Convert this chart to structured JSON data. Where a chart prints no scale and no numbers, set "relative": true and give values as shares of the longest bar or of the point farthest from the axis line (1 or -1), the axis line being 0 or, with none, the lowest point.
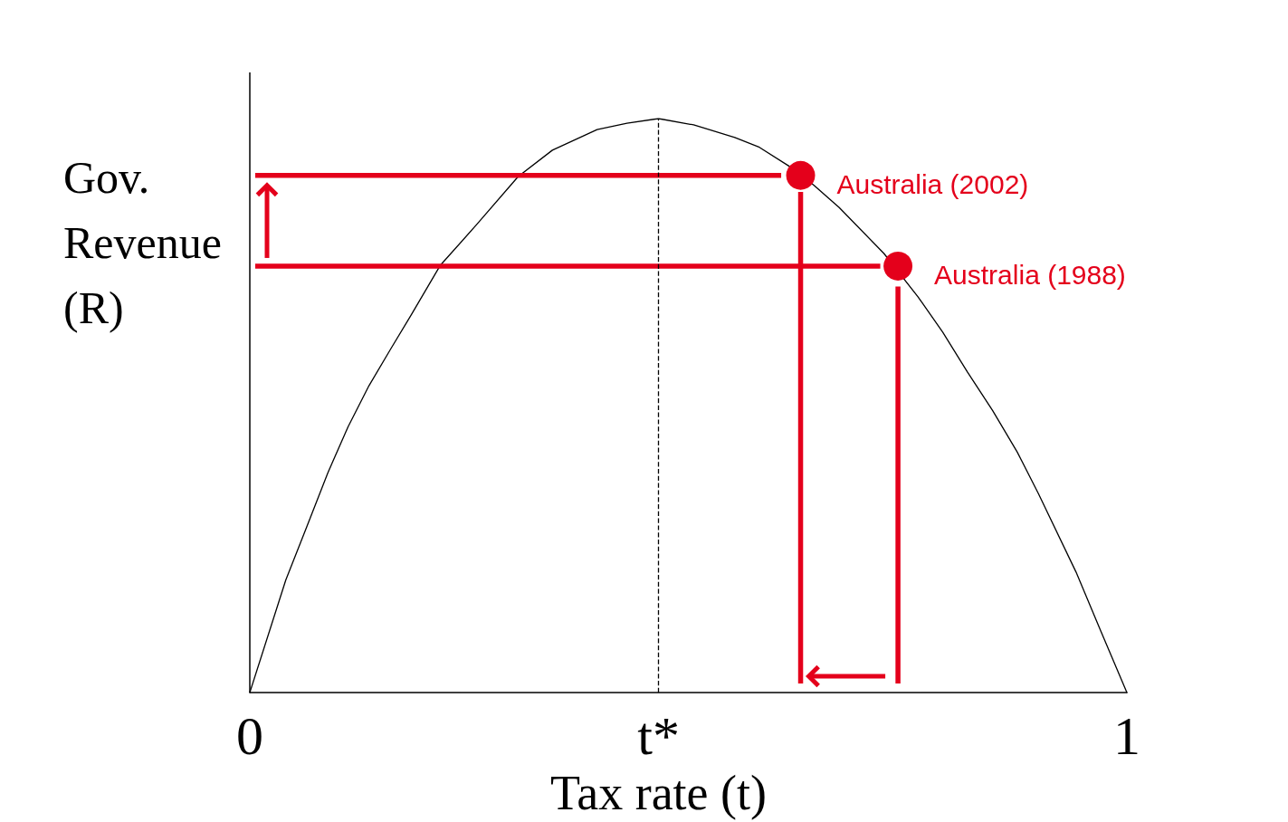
{
  "chart_data": {
    "type": "line",
    "relative": true,
    "xlabel": "Tax rate (t)",
    "ylabel": "Gov. Revenue (R)",
    "xlim": [
      0,
      1
    ],
    "xticks": [
      0,
      {
        "value": 0.466,
        "label": "t*"
      },
      1
    ],
    "grid": false,
    "series": [
      {
        "color": "#000000",
        "marker": "none",
        "x": [
          0,
          0.041,
          0.065,
          0.089,
          0.112,
          0.136,
          0.16,
          0.184,
          0.217,
          0.259,
          0.306,
          0.345,
          0.396,
          0.43,
          0.466,
          0.506,
          0.553,
          0.581,
          0.615,
          0.643,
          0.672,
          0.723,
          0.762,
          0.79,
          0.818,
          0.847,
          0.875,
          0.899,
          0.942,
          0.97,
          1.0
        ],
        "values": [
          0,
          0.196,
          0.289,
          0.383,
          0.463,
          0.535,
          0.597,
          0.658,
          0.744,
          0.816,
          0.899,
          0.945,
          0.981,
          0.992,
          1.0,
          0.989,
          0.967,
          0.95,
          0.917,
          0.884,
          0.845,
          0.765,
          0.689,
          0.628,
          0.559,
          0.491,
          0.419,
          0.347,
          0.21,
          0.108,
          0
        ]
      },
      {
        "color": "#e4001b",
        "marker": "none",
        "x": [
          0.009,
          0.603
        ],
        "values": [
          0.901,
          0.901
        ]
      },
      {
        "color": "#e4001b",
        "marker": "none",
        "x": [
          0.628,
          0.628
        ],
        "values": [
          0.868,
          0.02
        ]
      },
      {
        "color": "#e4001b",
        "marker": "none",
        "x": [
          0.009,
          0.716
        ],
        "values": [
          0.743,
          0.743
        ]
      },
      {
        "color": "#e4001b",
        "marker": "none",
        "x": [
          0.739,
          0.739
        ],
        "values": [
          0.703,
          0.02
        ]
      },
      {
        "type": "scatter",
        "color": "#e4001b",
        "marker": "circle",
        "x": [
          0.739,
          0.628
        ],
        "values": [
          0.743,
          0.901
        ]
      }
    ],
    "annotations": [
      {
        "text": "Australia (2002)",
        "x": 0.628,
        "y": 0.901
      },
      {
        "text": "Australia (1988)",
        "x": 0.739,
        "y": 0.743
      }
    ],
    "ref_lines": [
      {
        "axis": "x",
        "value": 0.466,
        "color": "#000000",
        "line_style": "dashed"
      }
    ]
  }
}
